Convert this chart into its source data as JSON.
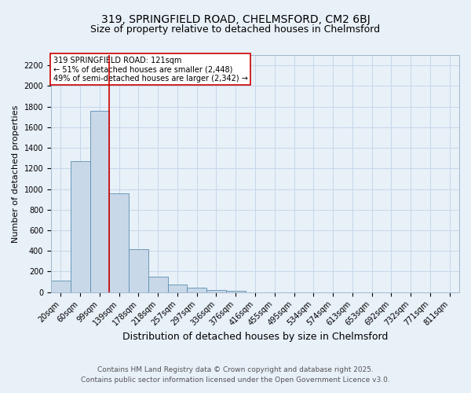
{
  "title_line1": "319, SPRINGFIELD ROAD, CHELMSFORD, CM2 6BJ",
  "title_line2": "Size of property relative to detached houses in Chelmsford",
  "xlabel": "Distribution of detached houses by size in Chelmsford",
  "ylabel": "Number of detached properties",
  "categories": [
    "20sqm",
    "60sqm",
    "99sqm",
    "139sqm",
    "178sqm",
    "218sqm",
    "257sqm",
    "297sqm",
    "336sqm",
    "376sqm",
    "416sqm",
    "455sqm",
    "495sqm",
    "534sqm",
    "574sqm",
    "613sqm",
    "653sqm",
    "692sqm",
    "732sqm",
    "771sqm",
    "811sqm"
  ],
  "values": [
    115,
    1270,
    1760,
    955,
    420,
    150,
    75,
    40,
    20,
    10,
    0,
    0,
    0,
    0,
    0,
    0,
    0,
    0,
    0,
    0,
    0
  ],
  "bar_color": "#c8d8e8",
  "bar_edge_color": "#5b8db0",
  "grid_color": "#c5d8e8",
  "background_color": "#e8f0f8",
  "vline_x": 2.5,
  "vline_color": "#cc0000",
  "annotation_text": "319 SPRINGFIELD ROAD: 121sqm\n← 51% of detached houses are smaller (2,448)\n49% of semi-detached houses are larger (2,342) →",
  "annotation_box_color": "#ffffff",
  "annotation_border_color": "#cc0000",
  "ylim": [
    0,
    2300
  ],
  "yticks": [
    0,
    200,
    400,
    600,
    800,
    1000,
    1200,
    1400,
    1600,
    1800,
    2000,
    2200
  ],
  "footer_line1": "Contains HM Land Registry data © Crown copyright and database right 2025.",
  "footer_line2": "Contains public sector information licensed under the Open Government Licence v3.0.",
  "title1_fontsize": 10,
  "title2_fontsize": 9,
  "xlabel_fontsize": 9,
  "ylabel_fontsize": 8,
  "tick_fontsize": 7,
  "annotation_fontsize": 7,
  "footer_fontsize": 6.5
}
